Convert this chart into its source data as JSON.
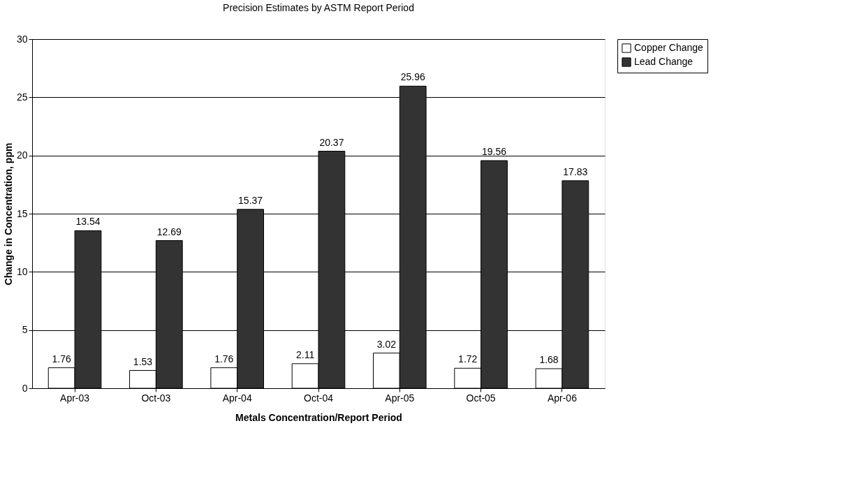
{
  "chart_data": {
    "type": "bar",
    "title": "Precision Estimates by ASTM Report Period",
    "xlabel": "Metals Concentration/Report Period",
    "ylabel": "Change in Concentration, ppm",
    "categories": [
      "Apr-03",
      "Oct-03",
      "Apr-04",
      "Oct-04",
      "Apr-05",
      "Oct-05",
      "Apr-06"
    ],
    "series": [
      {
        "name": "Copper Change",
        "color": "#ffffff",
        "values": [
          1.76,
          1.53,
          1.76,
          2.11,
          3.02,
          1.72,
          1.68
        ]
      },
      {
        "name": "Lead Change",
        "color": "#333333",
        "values": [
          13.54,
          12.69,
          15.37,
          20.37,
          25.96,
          19.56,
          17.83
        ]
      }
    ],
    "ylim": [
      0,
      30
    ],
    "yticks": [
      0,
      5,
      10,
      15,
      20,
      25,
      30
    ],
    "grid": "y",
    "legend": "right",
    "data_labels": true
  }
}
